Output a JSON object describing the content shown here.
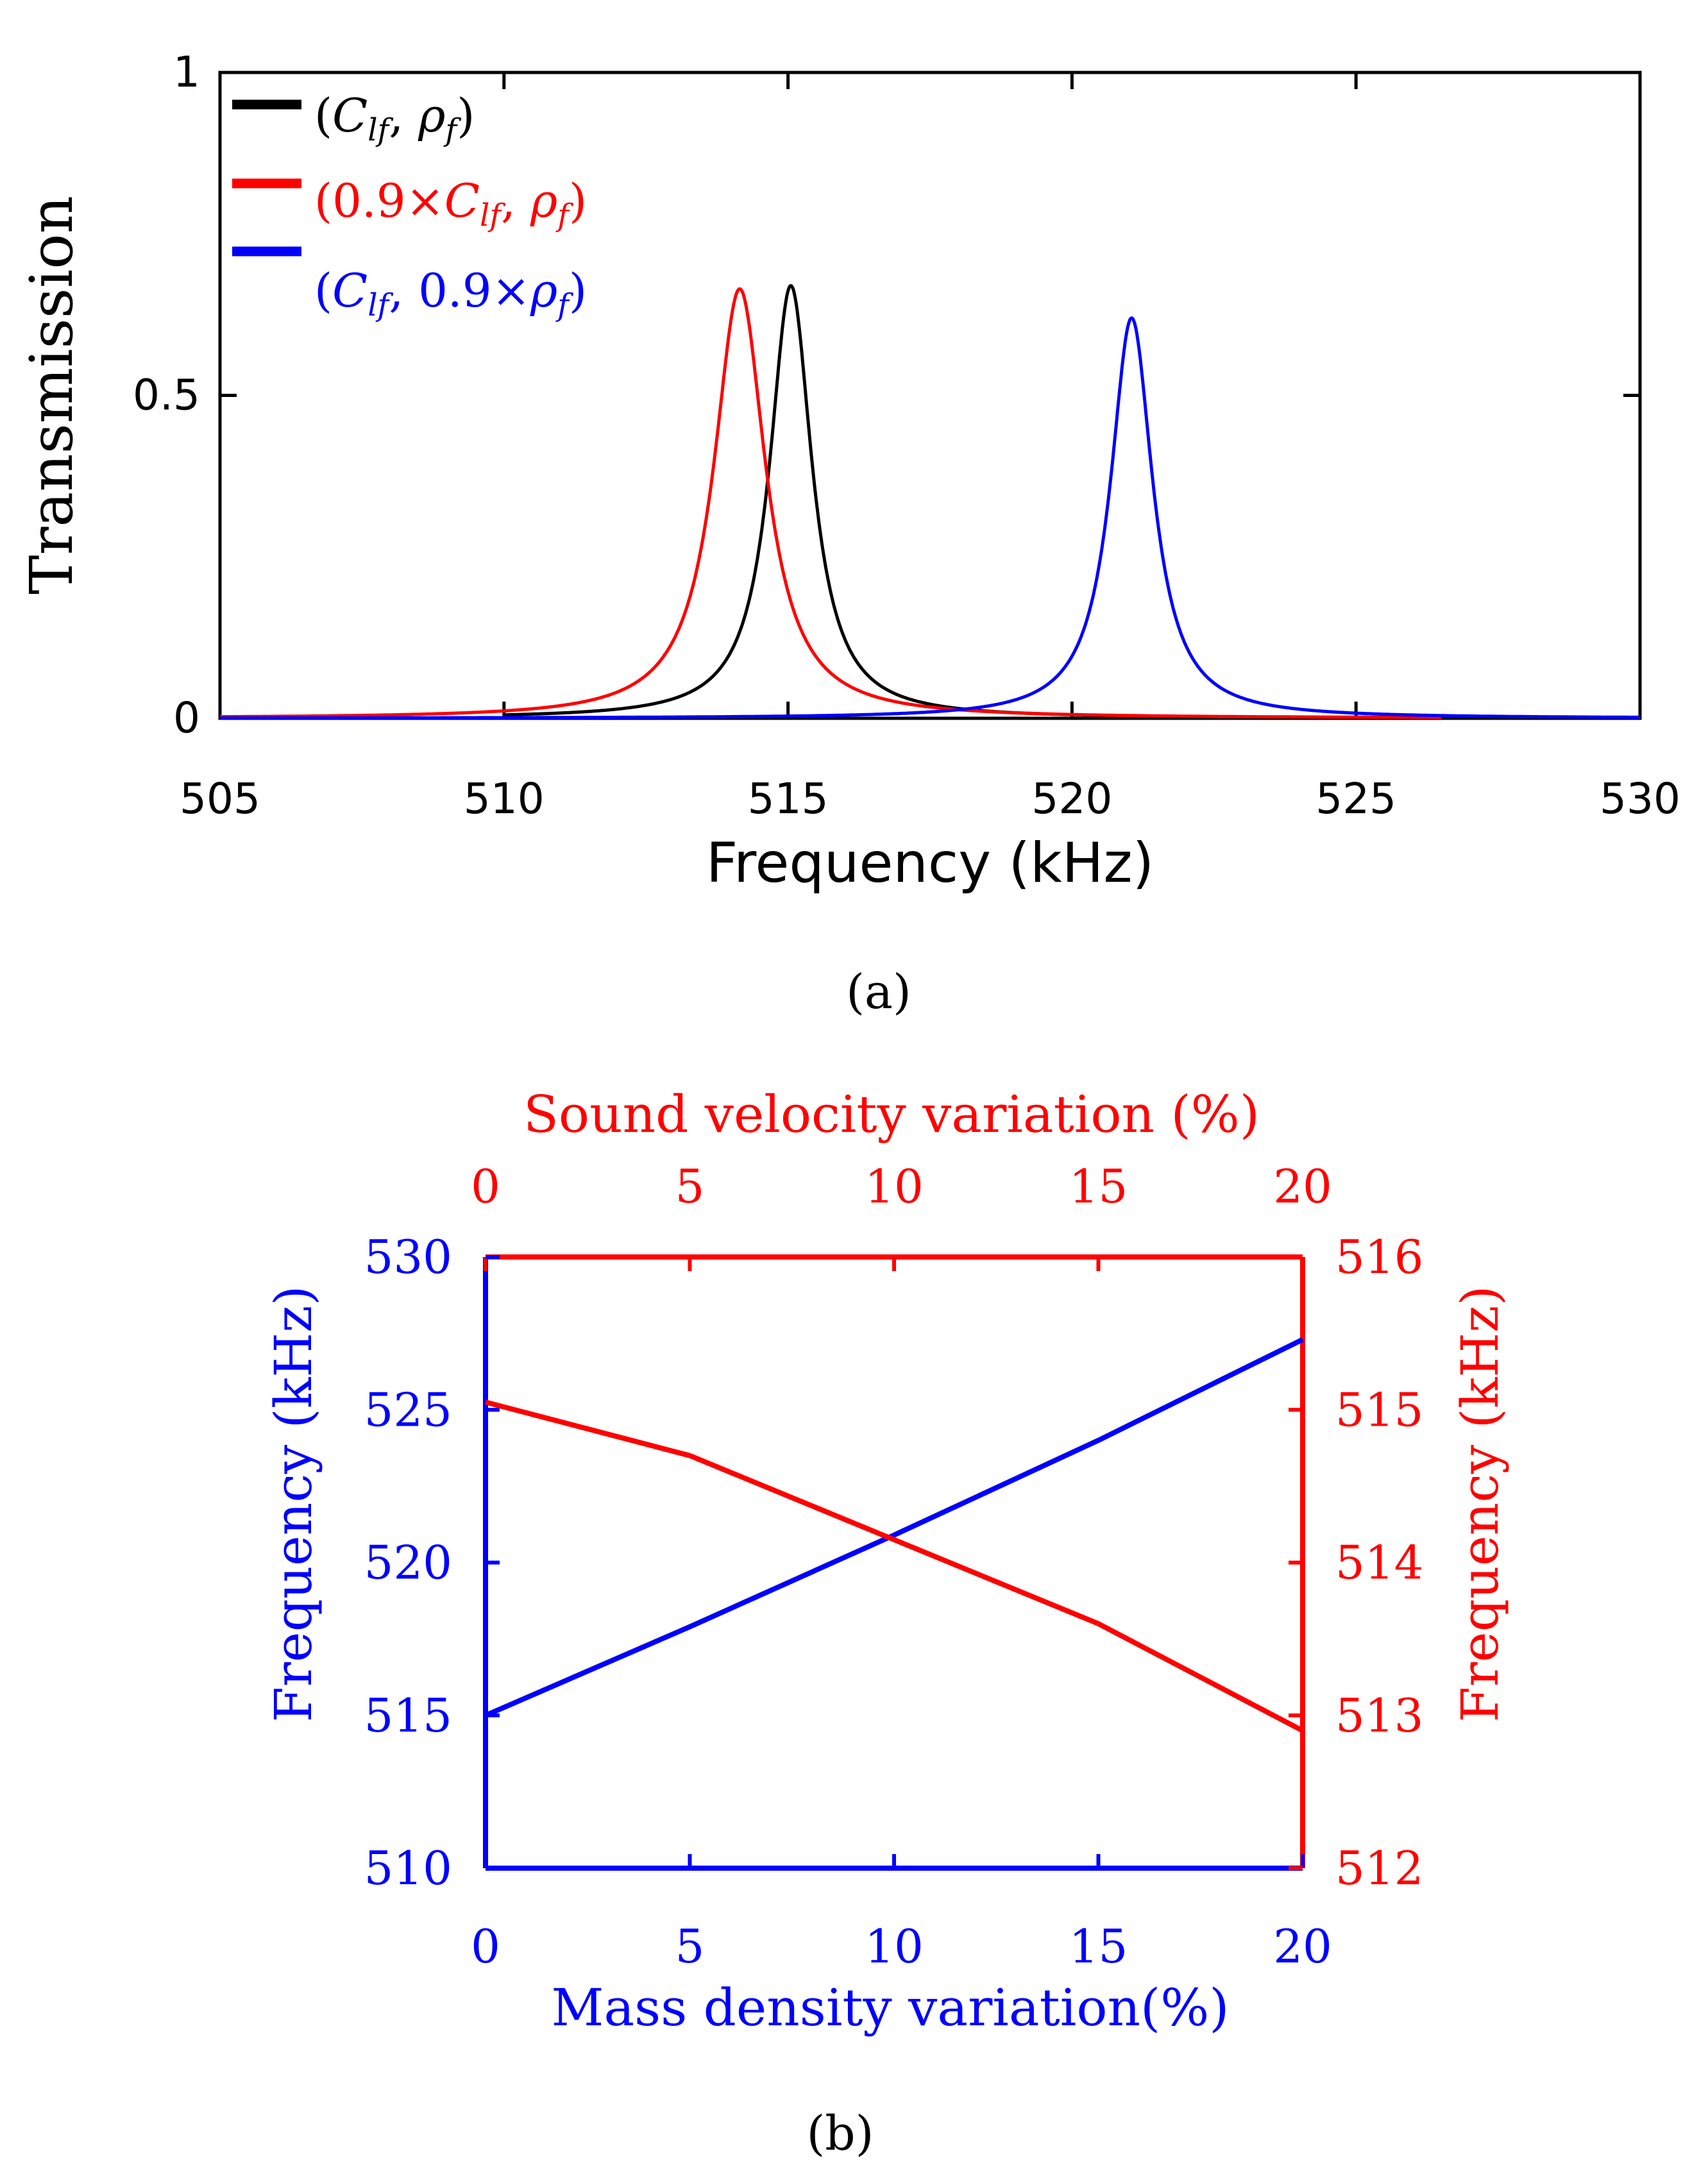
{
  "chart_data": [
    {
      "type": "line",
      "panel_label": "(a)",
      "xlabel": "Frequency (kHz)",
      "ylabel": "Transmission",
      "xlim": [
        505,
        530
      ],
      "ylim": [
        0,
        1
      ],
      "xticks": [
        "505",
        "510",
        "515",
        "520",
        "525",
        "530"
      ],
      "yticks": [
        "0",
        "0.5",
        "1"
      ],
      "legend_position": "top-left",
      "series": [
        {
          "name": "(C_lf, ρ_f)",
          "legend": {
            "open": "(",
            "main1": "C",
            "sub1": "lf",
            "sep": ", ",
            "main2": "ρ",
            "sub2": "f",
            "close": ")"
          },
          "color": "#000000",
          "peak_x": 515.05,
          "peak_y": 0.67,
          "half_width": 0.45,
          "x_range": [
            510.0,
            521.5
          ]
        },
        {
          "name": "(0.9×C_lf, ρ_f)",
          "legend": {
            "open": "(0.9×",
            "main1": "C",
            "sub1": "lf",
            "sep": ", ",
            "main2": "ρ",
            "sub2": "f",
            "close": ")"
          },
          "color": "#ff0000",
          "peak_x": 514.15,
          "peak_y": 0.665,
          "half_width": 0.55,
          "x_range": [
            505.0,
            526.5
          ]
        },
        {
          "name": "(C_lf, 0.9×ρ_f)",
          "legend": {
            "open": "(",
            "main1": "C",
            "sub1": "lf",
            "sep": ", 0.9×",
            "main2": "ρ",
            "sub2": "f",
            "close": ")"
          },
          "color": "#0000ff",
          "peak_x": 521.05,
          "peak_y": 0.62,
          "half_width": 0.45,
          "x_range": [
            505.0,
            530.0
          ]
        }
      ]
    },
    {
      "type": "line",
      "panel_label": "(b)",
      "xlabel": "Mass density variation(%)",
      "x2label": "Sound velocity variation (%)",
      "ylabel": "Frequency (kHz)",
      "y2label": "Frequency (kHz)",
      "xlim": [
        0,
        20
      ],
      "x2lim": [
        0,
        20
      ],
      "ylim": [
        510,
        530
      ],
      "y2lim": [
        512,
        516
      ],
      "xticks": [
        "0",
        "5",
        "10",
        "15",
        "20"
      ],
      "x2ticks": [
        "0",
        "5",
        "10",
        "15",
        "20"
      ],
      "yticks": [
        "510",
        "515",
        "520",
        "525",
        "530"
      ],
      "y2ticks": [
        "512",
        "513",
        "514",
        "515",
        "516"
      ],
      "series": [
        {
          "name": "Mass density variation",
          "color": "#0000ff",
          "axis": "bottom-left",
          "x": [
            0,
            5,
            10,
            15,
            20
          ],
          "y": [
            515.0,
            517.9,
            520.9,
            524.0,
            527.3
          ]
        },
        {
          "name": "Sound velocity variation",
          "color": "#ff0000",
          "axis": "top-right",
          "x": [
            0,
            5,
            10,
            15,
            20
          ],
          "y": [
            515.05,
            514.7,
            514.15,
            513.6,
            512.9
          ]
        }
      ]
    }
  ]
}
